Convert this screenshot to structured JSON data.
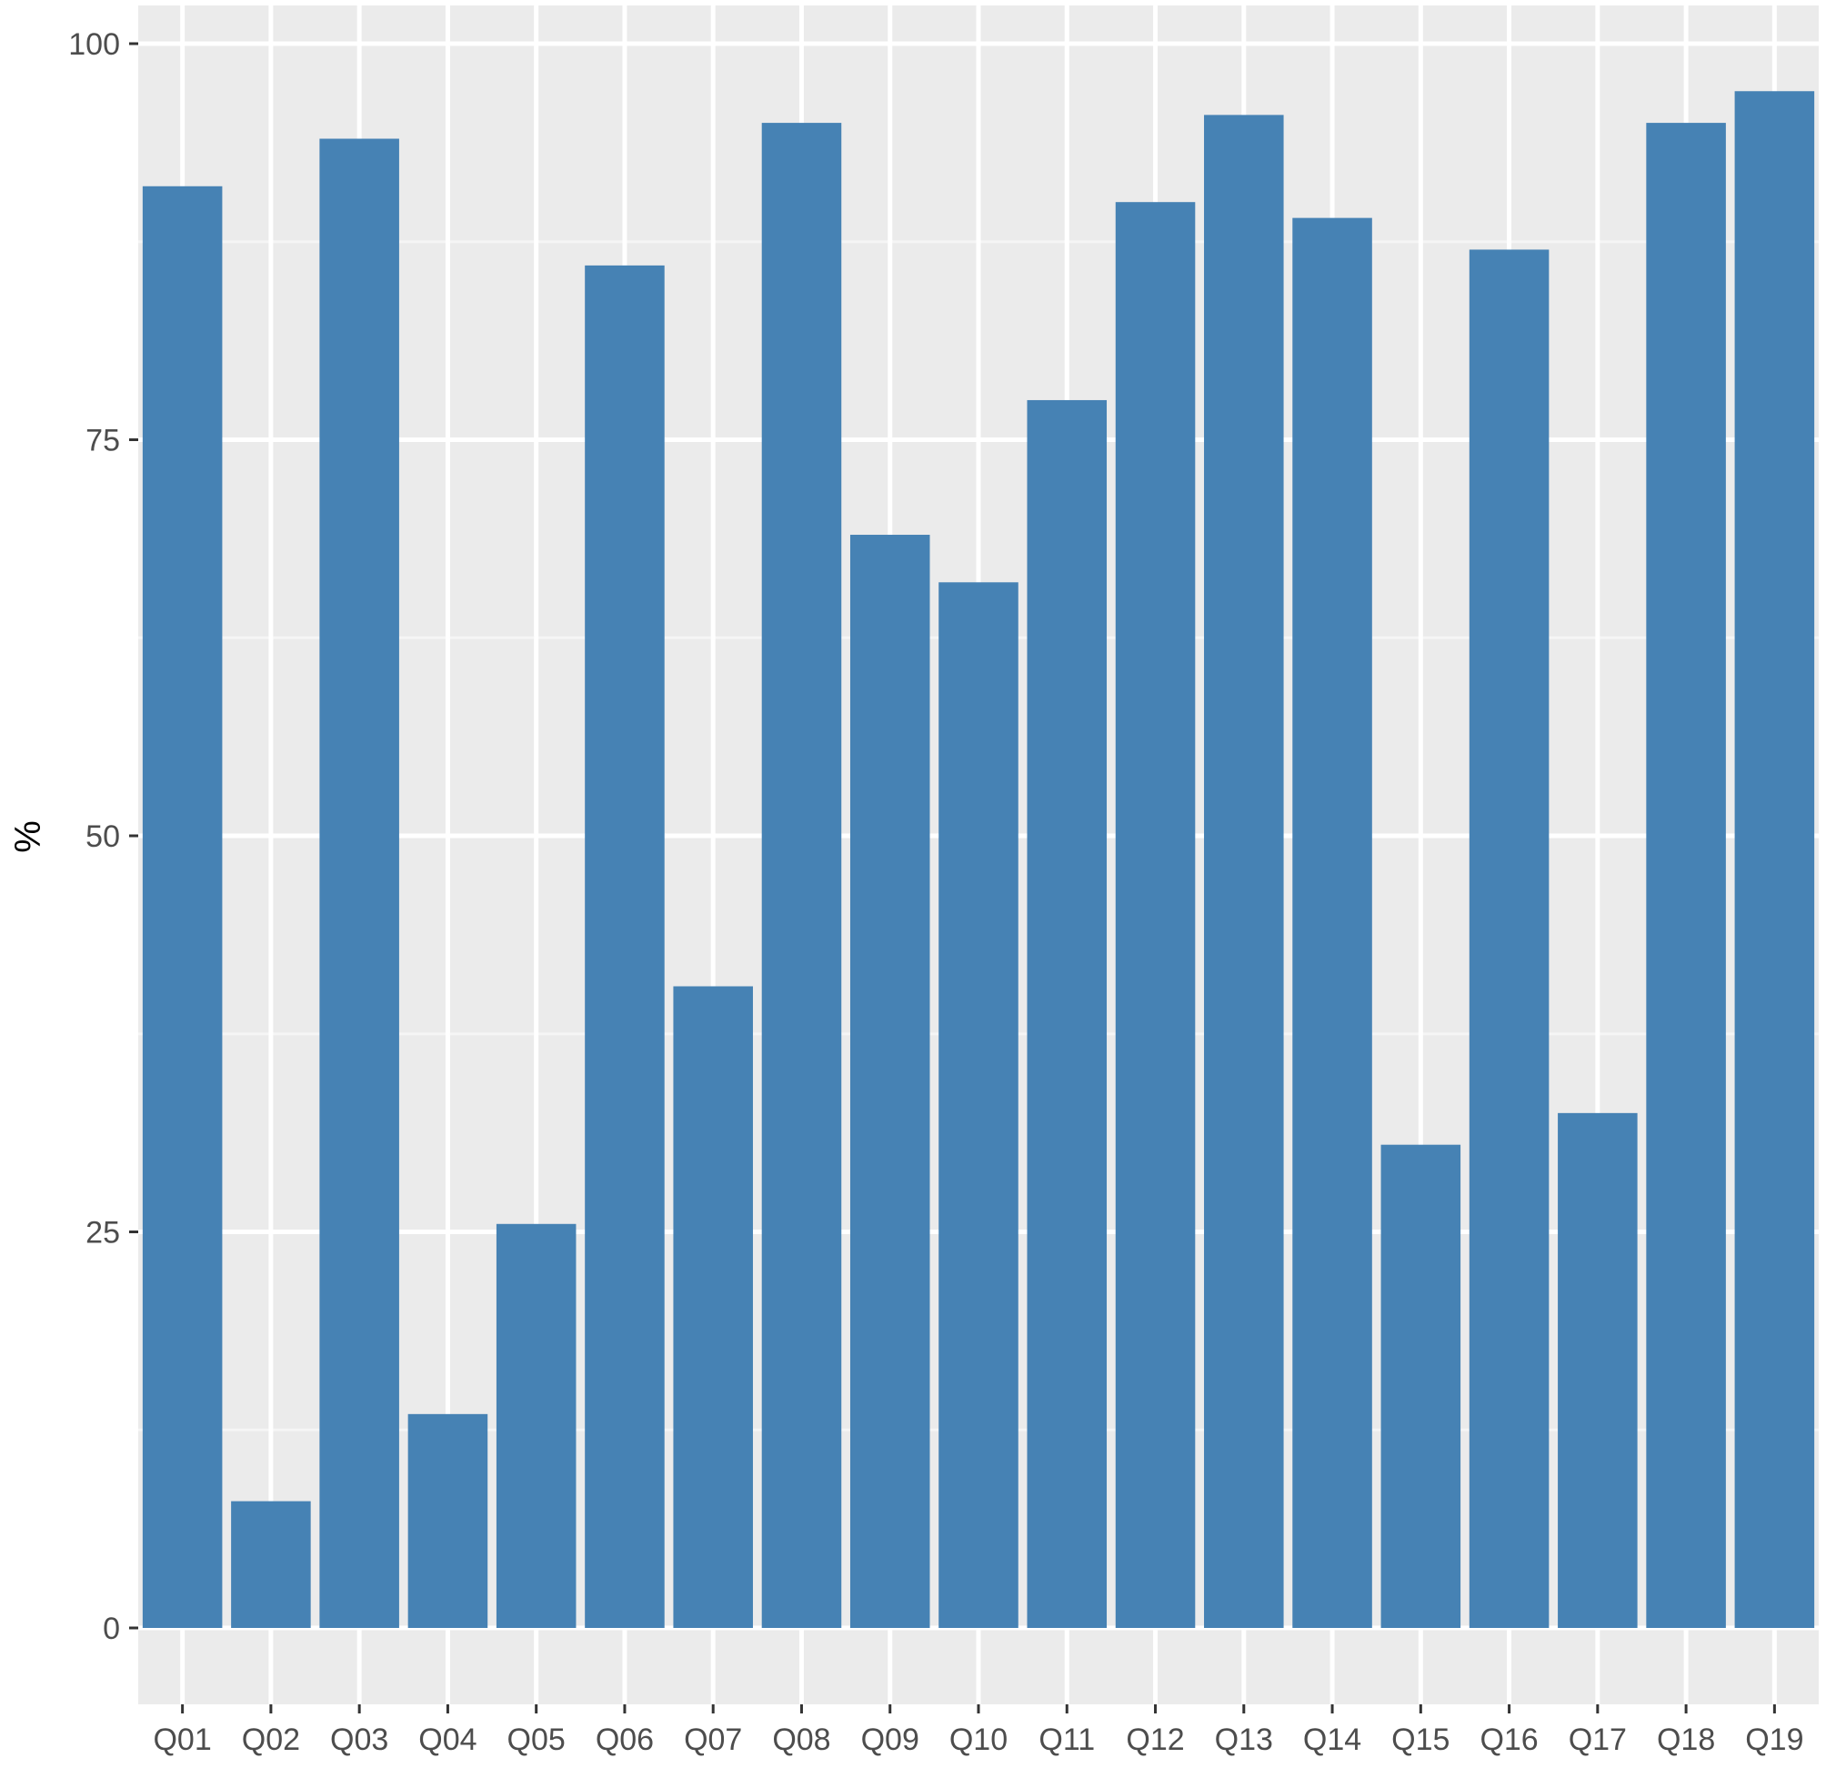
{
  "chart_data": {
    "type": "bar",
    "title": "",
    "xlabel": "",
    "ylabel": "%",
    "ylim": [
      -5,
      102.5
    ],
    "yticks": [
      0,
      25,
      50,
      75,
      100
    ],
    "grid": true,
    "legend": "none",
    "colors": {
      "panel_background": "#ebebeb",
      "grid_major": "#ffffff",
      "grid_minor": "#f5f5f5",
      "bar_fill": "#4682b4",
      "tick_color": "#333333",
      "tick_label": "#4d4d4d"
    },
    "categories": [
      "Q01",
      "Q02",
      "Q03",
      "Q04",
      "Q05",
      "Q06",
      "Q07",
      "Q08",
      "Q09",
      "Q10",
      "Q11",
      "Q12",
      "Q13",
      "Q14",
      "Q15",
      "Q16",
      "Q17",
      "Q18",
      "Q19"
    ],
    "values": [
      91,
      8,
      94,
      13.5,
      25.5,
      86,
      40.5,
      95,
      69,
      66,
      77.5,
      90,
      95.5,
      89,
      30.5,
      87,
      32.5,
      95,
      97
    ]
  }
}
